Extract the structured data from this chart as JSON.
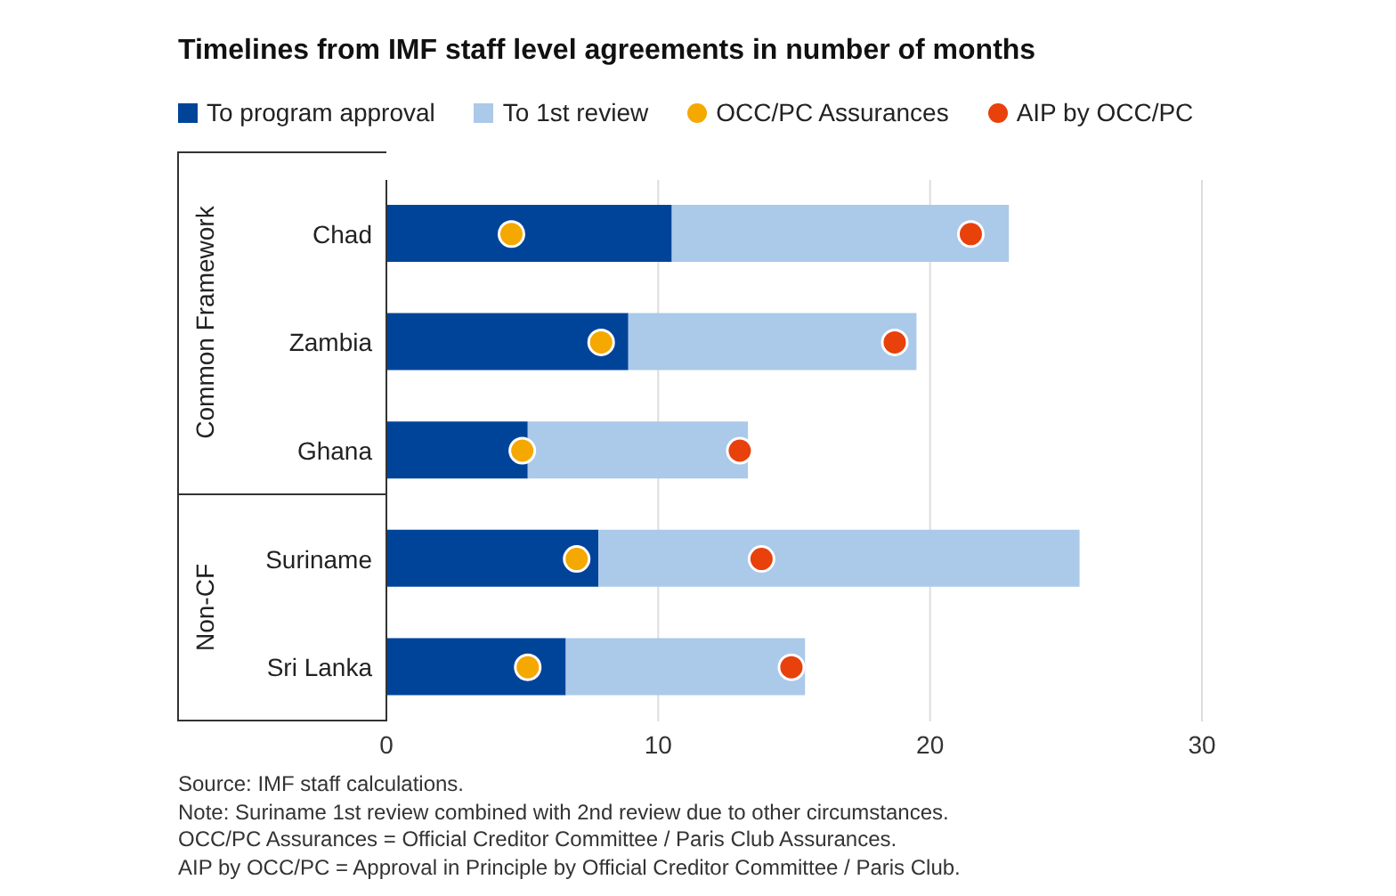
{
  "chart_data": {
    "type": "bar",
    "title": "Timelines from IMF staff level agreements in number of months",
    "orientation": "horizontal",
    "stacked": true,
    "categories": [
      "Chad",
      "Zambia",
      "Ghana",
      "Suriname",
      "Sri Lanka"
    ],
    "series": [
      {
        "name": "To program approval",
        "color": "#00449a",
        "values": [
          10.5,
          8.9,
          5.2,
          7.8,
          6.6
        ]
      },
      {
        "name": "To 1st review",
        "color": "#abc9e9",
        "values": [
          12.4,
          10.6,
          8.1,
          17.7,
          8.8
        ]
      },
      {
        "name": "OCC/PC Assurances",
        "type": "scatter",
        "color": "#f5a800",
        "values": [
          4.6,
          7.9,
          5.0,
          7.0,
          5.2
        ]
      },
      {
        "name": "AIP by OCC/PC",
        "type": "scatter",
        "color": "#e8410c",
        "values": [
          21.5,
          18.7,
          13.0,
          13.8,
          14.9
        ]
      }
    ],
    "xlim": [
      0,
      30
    ],
    "xticks": [
      0,
      10,
      20,
      30
    ],
    "grid": "x",
    "legend": "top left",
    "marker": "circle",
    "annotations": [
      "Common Framework",
      "Non-CF",
      "Source: IMF staff calculations.",
      "Note: Suriname 1st review combined with 2nd review due to other circumstances.",
      "OCC/PC Assurances = Official Creditor Committee / Paris Club Assurances.",
      "AIP by OCC/PC = Approval in Principle by Official Creditor Committee / Paris Club."
    ]
  }
}
